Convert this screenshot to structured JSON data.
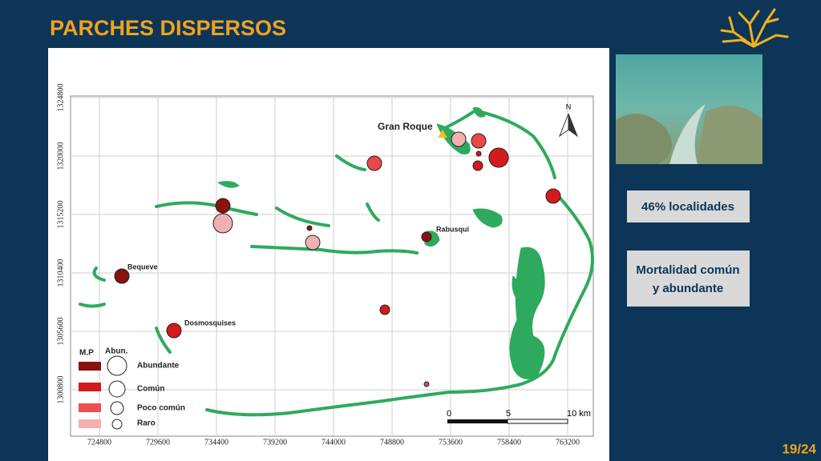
{
  "header": {
    "title": "PARCHES DISPERSOS"
  },
  "map": {
    "y_labels": [
      "1324800",
      "1320000",
      "1315200",
      "1310400",
      "1305600",
      "1300800"
    ],
    "x_labels": [
      "724800",
      "729600",
      "734400",
      "739200",
      "744000",
      "748800",
      "753600",
      "758400",
      "763200"
    ],
    "places": [
      "Gran Roque",
      "Rabusqui",
      "Bequeve",
      "Dosmosquises"
    ],
    "north": "N",
    "scale": [
      "0",
      "5",
      "10 km"
    ],
    "legend": {
      "header_color": "M.P",
      "header_size": "Abun.",
      "items": [
        "Abundante",
        "Común",
        "Poco común",
        "Raro"
      ]
    }
  },
  "side": {
    "stat": "46% localidades",
    "note_lines": [
      "Mortalidad común",
      "y abundante"
    ]
  },
  "footer": {
    "page": "19/24"
  }
}
